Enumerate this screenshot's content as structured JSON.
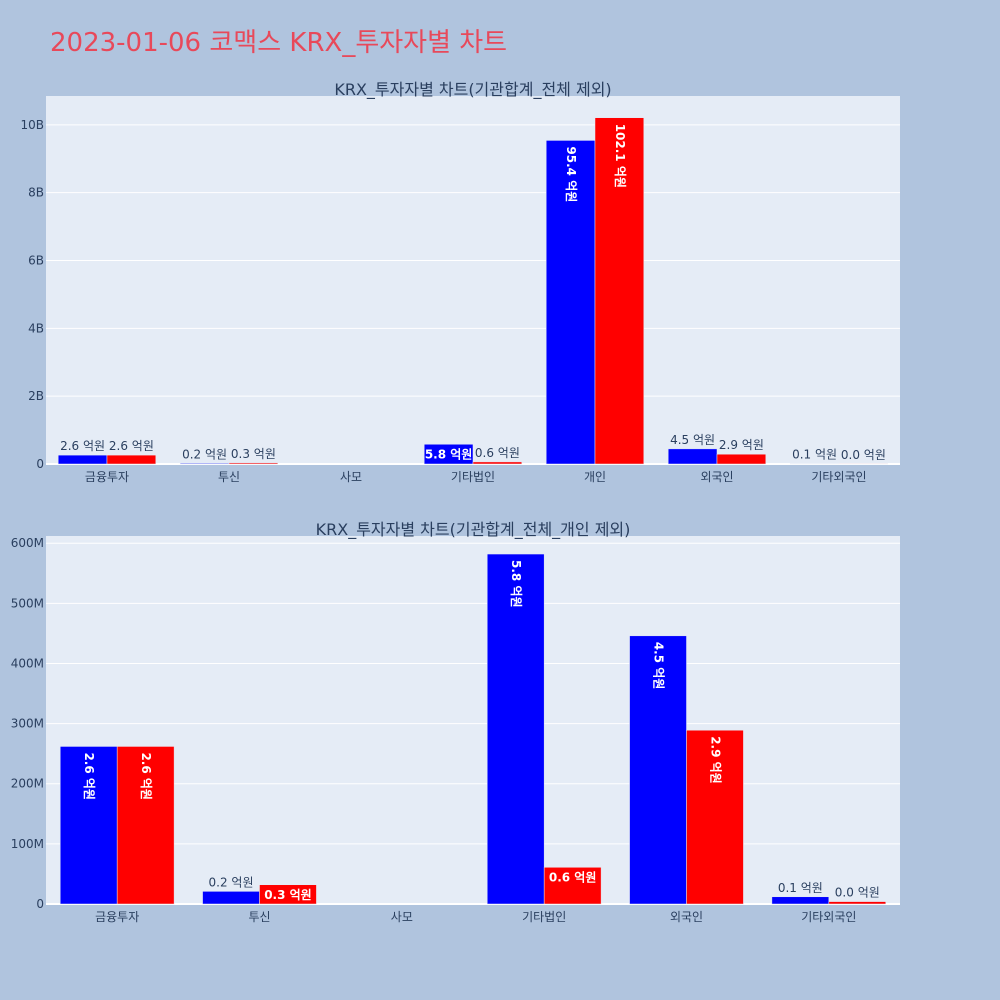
{
  "page": {
    "title": "2023-01-06 코맥스 KRX_투자자별 차트"
  },
  "colors": {
    "background": "#b0c4de",
    "plot": "#e5ecf6",
    "grid": "#ffffff",
    "title": "#e8495a",
    "text": "#2a3f5f"
  },
  "chart_data": [
    {
      "type": "bar",
      "title": "KRX_투자자별 차트(기관합계_전체 제외)",
      "categories": [
        "금융투자",
        "투신",
        "사모",
        "기타법인",
        "개인",
        "외국인",
        "기타외국인"
      ],
      "ylim": [
        0,
        10.85
      ],
      "yticks": [
        0,
        2,
        4,
        6,
        8,
        10
      ],
      "ytick_labels": [
        "0",
        "2B",
        "4B",
        "6B",
        "8B",
        "10B"
      ],
      "grid": true,
      "series": [
        {
          "color": "#0000ff",
          "values": [
            0.262,
            0.021,
            0,
            0.582,
            9.54,
            0.446,
            0.012
          ],
          "labels": [
            "2.6 억원",
            "0.2 억원",
            "",
            "5.8 억원",
            "95.4 억원",
            "4.5 억원",
            "0.1 억원"
          ]
        },
        {
          "color": "#ff0000",
          "values": [
            0.262,
            0.032,
            0,
            0.061,
            10.21,
            0.289,
            0.004
          ],
          "labels": [
            "2.6 억원",
            "0.3 억원",
            "",
            "0.6 억원",
            "102.1 억원",
            "2.9 억원",
            "0.0 억원"
          ]
        }
      ]
    },
    {
      "type": "bar",
      "title": "KRX_투자자별 차트(기관합계_전체_개인 제외)",
      "categories": [
        "금융투자",
        "투신",
        "사모",
        "기타법인",
        "외국인",
        "기타외국인"
      ],
      "ylim": [
        0,
        612
      ],
      "yticks": [
        0,
        100,
        200,
        300,
        400,
        500,
        600
      ],
      "ytick_labels": [
        "0",
        "100M",
        "200M",
        "300M",
        "400M",
        "500M",
        "600M"
      ],
      "grid": true,
      "series": [
        {
          "color": "#0000ff",
          "values": [
            262,
            21,
            0,
            582,
            446,
            12
          ],
          "labels": [
            "2.6 억원",
            "0.2 억원",
            "",
            "5.8 억원",
            "4.5 억원",
            "0.1 억원"
          ]
        },
        {
          "color": "#ff0000",
          "values": [
            262,
            32,
            0,
            61,
            289,
            4
          ],
          "labels": [
            "2.6 억원",
            "0.3 억원",
            "",
            "0.6 억원",
            "2.9 억원",
            "0.0 억원"
          ]
        }
      ]
    }
  ]
}
